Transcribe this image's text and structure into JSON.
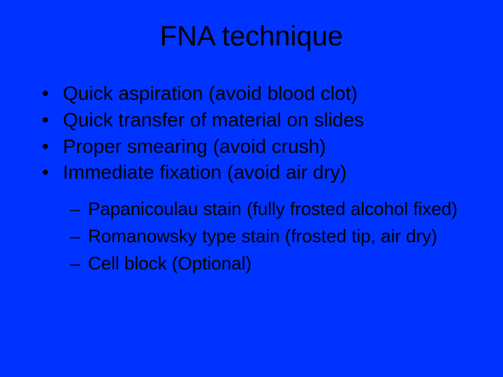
{
  "slide": {
    "title": "FNA technique",
    "background_color": "#0033ff",
    "text_color": "#000000",
    "title_fontsize": 40,
    "bullet_fontsize": 28,
    "subbullet_fontsize": 26,
    "bullet_marker": "•",
    "sub_marker": "–",
    "bullets": [
      {
        "text": "Quick aspiration (avoid blood clot)"
      },
      {
        "text": "Quick transfer of material on slides"
      },
      {
        "text": "Proper smearing (avoid crush)"
      },
      {
        "text": "Immediate fixation (avoid air dry)"
      }
    ],
    "sub_bullets": [
      {
        "text": "Papanicoulau stain (fully frosted alcohol fixed)"
      },
      {
        "text": "Romanowsky type stain (frosted tip, air dry)"
      },
      {
        "text": "Cell block (Optional)"
      }
    ]
  }
}
